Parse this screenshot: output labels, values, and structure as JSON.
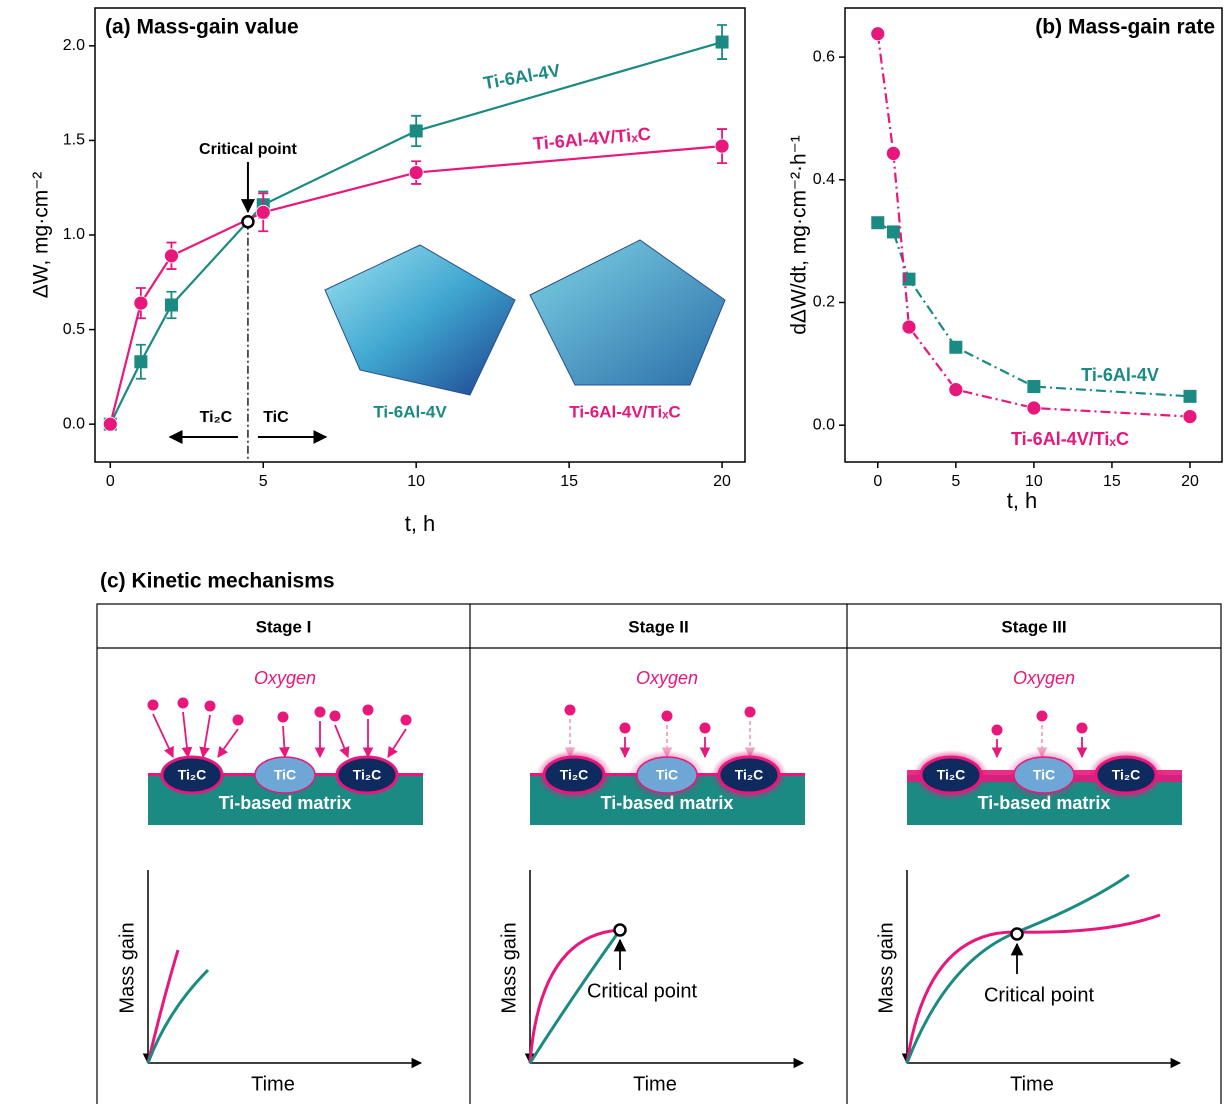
{
  "chart_data": [
    {
      "type": "line",
      "title": "(a) Mass-gain value",
      "x_label": "t, h",
      "y_label": "ΔW, mg·cm⁻²",
      "x": [
        0,
        1,
        2,
        5,
        10,
        20
      ],
      "series": [
        {
          "name": "Ti-6Al-4V",
          "color": "#1a8a82",
          "marker": "square",
          "values": [
            0,
            0.33,
            0.63,
            1.16,
            1.55,
            2.02
          ],
          "errors": [
            0,
            0.09,
            0.07,
            0.07,
            0.08,
            0.09
          ]
        },
        {
          "name": "Ti-6Al-4V/TiₓC",
          "color": "#e8177b",
          "marker": "circle",
          "values": [
            0,
            0.64,
            0.89,
            1.12,
            1.33,
            1.47
          ],
          "errors": [
            0,
            0.08,
            0.07,
            0.1,
            0.06,
            0.09
          ]
        }
      ],
      "critical_point": {
        "label": "Critical point",
        "x": 4.5,
        "y": 1.07
      },
      "phase_labels": [
        "Ti₂C",
        "TiC"
      ],
      "inset_labels": [
        "Ti-6Al-4V",
        "Ti-6Al-4V/TiₓC"
      ],
      "xlim": [
        -0.5,
        20.75
      ],
      "ylim": [
        -0.2,
        2.2
      ],
      "xticks": [
        0,
        5,
        10,
        15,
        20
      ],
      "yticks": [
        {
          "value": 0,
          "label": "0.0"
        },
        0.5,
        {
          "value": 1,
          "label": "1.0"
        },
        1.5,
        {
          "value": 2,
          "label": "2.0"
        }
      ]
    },
    {
      "type": "line",
      "title": "(b) Mass-gain rate",
      "x_label": "t, h",
      "y_label": "dΔW/dt, mg·cm⁻²·h⁻¹",
      "linestyle": "dashdot",
      "x": [
        0,
        1,
        2,
        5,
        10,
        20
      ],
      "series": [
        {
          "name": "Ti-6Al-4V",
          "color": "#1a8a82",
          "marker": "square",
          "values": [
            0.33,
            0.315,
            0.238,
            0.127,
            0.063,
            0.047
          ]
        },
        {
          "name": "Ti-6Al-4V/TiₓC",
          "color": "#e8177b",
          "marker": "circle",
          "values": [
            0.638,
            0.443,
            0.16,
            0.058,
            0.028,
            0.014
          ]
        }
      ],
      "xlim": [
        -2.1,
        22.05
      ],
      "ylim": [
        -0.06,
        0.68
      ],
      "xticks": [
        0,
        5,
        10,
        15,
        20
      ],
      "yticks": [
        {
          "value": 0,
          "label": "0.0"
        },
        0.2,
        0.4,
        0.6
      ]
    }
  ],
  "diagram": {
    "title": "(c) Kinetic mechanisms",
    "stages": [
      {
        "title": "Stage I",
        "gas": "Oxygen",
        "particles": [
          "Ti₂C",
          "TiC",
          "Ti₂C"
        ],
        "matrix": "Ti-based matrix",
        "y_label": "Mass gain",
        "x_label": "Time"
      },
      {
        "title": "Stage II",
        "gas": "Oxygen",
        "particles": [
          "Ti₂C",
          "TiC",
          "Ti₂C"
        ],
        "matrix": "Ti-based matrix",
        "y_label": "Mass gain",
        "x_label": "Time",
        "annotation": "Critical point"
      },
      {
        "title": "Stage III",
        "gas": "Oxygen",
        "particles": [
          "Ti₂C",
          "TiC",
          "Ti₂C"
        ],
        "matrix": "Ti-based matrix",
        "y_label": "Mass gain",
        "x_label": "Time",
        "annotation": "Critical point"
      }
    ]
  }
}
